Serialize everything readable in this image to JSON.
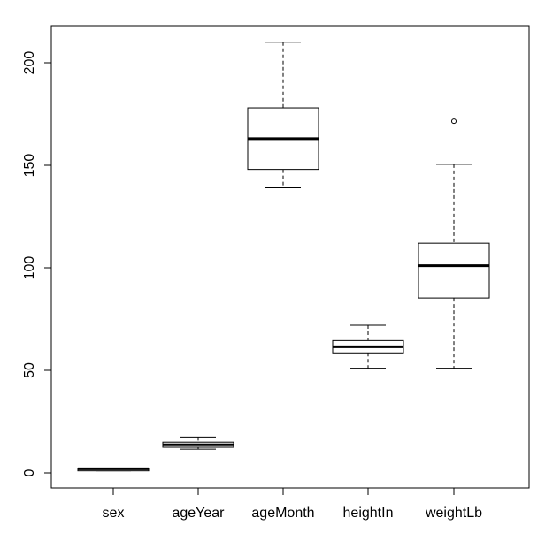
{
  "chart_data": {
    "type": "boxplot",
    "title": "",
    "xlabel": "",
    "ylabel": "",
    "ylim": [
      -7,
      220
    ],
    "yticks": [
      0,
      50,
      100,
      150,
      200
    ],
    "grid": false,
    "categories": [
      "sex",
      "ageYear",
      "ageMonth",
      "heightIn",
      "weightLb"
    ],
    "boxes": [
      {
        "name": "sex",
        "whisker_low": 1,
        "q1": 1,
        "median": 2,
        "q3": 2,
        "whisker_high": 2,
        "outliers": []
      },
      {
        "name": "ageYear",
        "whisker_low": 11.6,
        "q1": 12.5,
        "median": 13.7,
        "q3": 15,
        "whisker_high": 17.5,
        "outliers": []
      },
      {
        "name": "ageMonth",
        "whisker_low": 139,
        "q1": 148,
        "median": 163,
        "q3": 178,
        "whisker_high": 210,
        "outliers": []
      },
      {
        "name": "heightIn",
        "whisker_low": 51,
        "q1": 58.5,
        "median": 61.5,
        "q3": 64.5,
        "whisker_high": 72,
        "outliers": []
      },
      {
        "name": "weightLb",
        "whisker_low": 51,
        "q1": 85.3,
        "median": 101,
        "q3": 112,
        "whisker_high": 150.5,
        "outliers": [
          171.5
        ]
      }
    ]
  }
}
